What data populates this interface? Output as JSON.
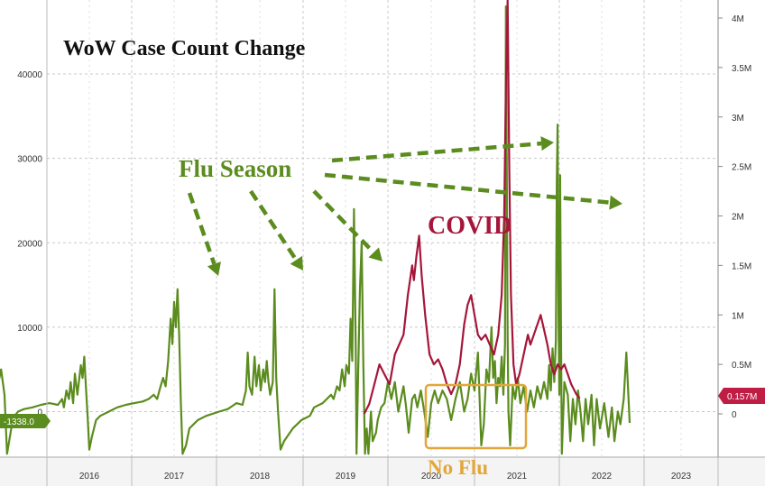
{
  "chart_data": {
    "type": "line",
    "title": "WoW Case Count Change",
    "x": [
      "2016",
      "2017",
      "2018",
      "2019",
      "2020",
      "2021",
      "2022",
      "2023"
    ],
    "y_left": {
      "ylim": [
        -5000,
        48000
      ],
      "ticks": [
        "0",
        "10000",
        "20000",
        "30000",
        "40000"
      ],
      "values": [
        0,
        10000,
        20000,
        30000,
        40000
      ]
    },
    "y_right": {
      "ylim": [
        -400000,
        4400000
      ],
      "ticks": [
        "0",
        "0.5M",
        "1M",
        "1.5M",
        "2M",
        "2.5M",
        "3M",
        "3.5M",
        "4M"
      ],
      "values": [
        0,
        500000,
        1000000,
        1500000,
        2000000,
        2500000,
        3000000,
        3500000,
        4000000
      ]
    },
    "series": [
      {
        "axis": "left",
        "color": "#5b8c1e",
        "values": [
          [
            2015.6,
            -5000
          ],
          [
            2015.63,
            2000
          ],
          [
            2015.66,
            3000
          ],
          [
            2015.7,
            2500
          ],
          [
            2015.74,
            0
          ],
          [
            2015.77,
            800
          ],
          [
            2015.8,
            -1000
          ],
          [
            2015.85,
            3500
          ],
          [
            2015.88,
            5000
          ],
          [
            2015.92,
            2000
          ],
          [
            2015.95,
            -5000
          ],
          [
            2016.0,
            -2000
          ],
          [
            2016.04,
            -500
          ],
          [
            2016.08,
            0
          ],
          [
            2016.15,
            300
          ],
          [
            2016.25,
            500
          ],
          [
            2016.35,
            800
          ],
          [
            2016.45,
            1000
          ],
          [
            2016.55,
            800
          ],
          [
            2016.6,
            1500
          ],
          [
            2016.62,
            500
          ],
          [
            2016.65,
            2500
          ],
          [
            2016.68,
            1500
          ],
          [
            2016.7,
            3500
          ],
          [
            2016.73,
            1000
          ],
          [
            2016.75,
            4500
          ],
          [
            2016.78,
            2000
          ],
          [
            2016.82,
            5500
          ],
          [
            2016.84,
            4000
          ],
          [
            2016.86,
            6500
          ],
          [
            2016.88,
            3000
          ],
          [
            2016.9,
            -500
          ],
          [
            2016.92,
            -4500
          ],
          [
            2016.95,
            -3000
          ],
          [
            2017.0,
            -1000
          ],
          [
            2017.05,
            -500
          ],
          [
            2017.15,
            0
          ],
          [
            2017.25,
            500
          ],
          [
            2017.35,
            800
          ],
          [
            2017.45,
            1000
          ],
          [
            2017.55,
            1200
          ],
          [
            2017.62,
            1500
          ],
          [
            2017.68,
            2000
          ],
          [
            2017.72,
            1500
          ],
          [
            2017.76,
            3000
          ],
          [
            2017.79,
            4000
          ],
          [
            2017.82,
            3000
          ],
          [
            2017.85,
            6000
          ],
          [
            2017.88,
            11000
          ],
          [
            2017.9,
            8000
          ],
          [
            2017.92,
            13000
          ],
          [
            2017.94,
            10000
          ],
          [
            2017.96,
            14500
          ],
          [
            2017.98,
            9000
          ],
          [
            2018.0,
            1000
          ],
          [
            2018.02,
            -5000
          ],
          [
            2018.06,
            -4000
          ],
          [
            2018.1,
            -2000
          ],
          [
            2018.2,
            -1000
          ],
          [
            2018.3,
            -500
          ],
          [
            2018.45,
            0
          ],
          [
            2018.55,
            300
          ],
          [
            2018.65,
            1000
          ],
          [
            2018.72,
            800
          ],
          [
            2018.76,
            2500
          ],
          [
            2018.78,
            7000
          ],
          [
            2018.8,
            3000
          ],
          [
            2018.83,
            2000
          ],
          [
            2018.86,
            6500
          ],
          [
            2018.88,
            3000
          ],
          [
            2018.91,
            5500
          ],
          [
            2018.93,
            2500
          ],
          [
            2018.96,
            5000
          ],
          [
            2018.98,
            3500
          ],
          [
            2019.0,
            6000
          ],
          [
            2019.02,
            3500
          ],
          [
            2019.04,
            2000
          ],
          [
            2019.07,
            3500
          ],
          [
            2019.09,
            14500
          ],
          [
            2019.11,
            4000
          ],
          [
            2019.13,
            0
          ],
          [
            2019.16,
            -4500
          ],
          [
            2019.2,
            -3500
          ],
          [
            2019.3,
            -2000
          ],
          [
            2019.4,
            -1000
          ],
          [
            2019.5,
            -500
          ],
          [
            2019.55,
            500
          ],
          [
            2019.65,
            1000
          ],
          [
            2019.75,
            2000
          ],
          [
            2019.78,
            1500
          ],
          [
            2019.82,
            3000
          ],
          [
            2019.85,
            2500
          ],
          [
            2019.88,
            5000
          ],
          [
            2019.91,
            3000
          ],
          [
            2019.93,
            5500
          ],
          [
            2019.96,
            4500
          ],
          [
            2019.98,
            11000
          ],
          [
            2020.0,
            6000
          ],
          [
            2020.02,
            24000
          ],
          [
            2020.04,
            8000
          ],
          [
            2020.05,
            -5000
          ],
          [
            2020.07,
            5000
          ],
          [
            2020.09,
            14500
          ],
          [
            2020.11,
            20000
          ],
          [
            2020.13,
            6000
          ],
          [
            2020.15,
            -5000
          ],
          [
            2020.17,
            -2000
          ],
          [
            2020.19,
            -5000
          ],
          [
            2020.22,
            0
          ],
          [
            2020.24,
            -3500
          ],
          [
            2020.28,
            -2500
          ],
          [
            2020.3,
            -1000
          ],
          [
            2020.34,
            500
          ],
          [
            2020.38,
            1000
          ],
          [
            2020.42,
            3500
          ],
          [
            2020.46,
            1500
          ],
          [
            2020.5,
            3500
          ],
          [
            2020.54,
            0
          ],
          [
            2020.57,
            1500
          ],
          [
            2020.6,
            3000
          ],
          [
            2020.63,
            500
          ],
          [
            2020.66,
            -2500
          ],
          [
            2020.7,
            1500
          ],
          [
            2020.73,
            2000
          ],
          [
            2020.76,
            500
          ],
          [
            2020.8,
            2500
          ],
          [
            2020.84,
            0
          ],
          [
            2020.88,
            -3000
          ],
          [
            2020.92,
            1000
          ],
          [
            2020.96,
            2500
          ],
          [
            2021.0,
            1000
          ],
          [
            2021.05,
            2500
          ],
          [
            2021.1,
            1500
          ],
          [
            2021.15,
            -1000
          ],
          [
            2021.2,
            1500
          ],
          [
            2021.25,
            3500
          ],
          [
            2021.3,
            0
          ],
          [
            2021.34,
            1500
          ],
          [
            2021.38,
            4500
          ],
          [
            2021.42,
            2500
          ],
          [
            2021.46,
            7000
          ],
          [
            2021.5,
            -4000
          ],
          [
            2021.53,
            -1500
          ],
          [
            2021.56,
            5000
          ],
          [
            2021.59,
            3500
          ],
          [
            2021.62,
            10000
          ],
          [
            2021.64,
            4000
          ],
          [
            2021.66,
            6000
          ],
          [
            2021.68,
            1000
          ],
          [
            2021.7,
            4000
          ],
          [
            2021.72,
            3000
          ],
          [
            2021.74,
            6500
          ],
          [
            2021.76,
            2000
          ],
          [
            2021.78,
            8000
          ],
          [
            2021.79,
            48000
          ],
          [
            2021.8,
            30000
          ],
          [
            2021.81,
            9000
          ],
          [
            2021.82,
            0
          ],
          [
            2021.84,
            -4000
          ],
          [
            2021.87,
            3000
          ],
          [
            2021.9,
            1500
          ],
          [
            2021.93,
            4000
          ],
          [
            2021.96,
            1000
          ],
          [
            2022.0,
            3000
          ],
          [
            2022.04,
            0
          ],
          [
            2022.08,
            2500
          ],
          [
            2022.12,
            500
          ],
          [
            2022.16,
            3000
          ],
          [
            2022.2,
            1500
          ],
          [
            2022.24,
            3500
          ],
          [
            2022.28,
            1500
          ],
          [
            2022.3,
            5500
          ],
          [
            2022.32,
            2500
          ],
          [
            2022.34,
            7500
          ],
          [
            2022.36,
            3500
          ],
          [
            2022.38,
            8500
          ],
          [
            2022.39,
            27000
          ],
          [
            2022.4,
            34000
          ],
          [
            2022.41,
            12000
          ],
          [
            2022.42,
            2000
          ],
          [
            2022.43,
            28000
          ],
          [
            2022.44,
            9000
          ],
          [
            2022.45,
            -5000
          ],
          [
            2022.48,
            3500
          ],
          [
            2022.52,
            2000
          ],
          [
            2022.55,
            -3500
          ],
          [
            2022.58,
            1500
          ],
          [
            2022.61,
            -1500
          ],
          [
            2022.64,
            2500
          ],
          [
            2022.67,
            0
          ],
          [
            2022.7,
            -3500
          ],
          [
            2022.73,
            1500
          ],
          [
            2022.76,
            -1500
          ],
          [
            2022.8,
            2000
          ],
          [
            2022.83,
            -4000
          ],
          [
            2022.86,
            1500
          ],
          [
            2022.9,
            -2000
          ],
          [
            2022.95,
            1000
          ],
          [
            2023.0,
            -3000
          ],
          [
            2023.04,
            500
          ],
          [
            2023.07,
            -3500
          ],
          [
            2023.11,
            0
          ],
          [
            2023.14,
            -1500
          ],
          [
            2023.18,
            1500
          ],
          [
            2023.21,
            7000
          ],
          [
            2023.25,
            -1338
          ]
        ]
      },
      {
        "axis": "right",
        "color": "#a5163a",
        "values": [
          [
            2020.14,
            0
          ],
          [
            2020.2,
            100000
          ],
          [
            2020.26,
            300000
          ],
          [
            2020.32,
            500000
          ],
          [
            2020.38,
            400000
          ],
          [
            2020.44,
            300000
          ],
          [
            2020.5,
            600000
          ],
          [
            2020.55,
            700000
          ],
          [
            2020.6,
            800000
          ],
          [
            2020.65,
            1200000
          ],
          [
            2020.7,
            1500000
          ],
          [
            2020.72,
            1350000
          ],
          [
            2020.75,
            1600000
          ],
          [
            2020.78,
            1800000
          ],
          [
            2020.81,
            1400000
          ],
          [
            2020.85,
            1000000
          ],
          [
            2020.9,
            600000
          ],
          [
            2020.95,
            500000
          ],
          [
            2021.0,
            550000
          ],
          [
            2021.05,
            450000
          ],
          [
            2021.1,
            300000
          ],
          [
            2021.15,
            200000
          ],
          [
            2021.2,
            300000
          ],
          [
            2021.25,
            500000
          ],
          [
            2021.3,
            900000
          ],
          [
            2021.34,
            1100000
          ],
          [
            2021.38,
            1200000
          ],
          [
            2021.42,
            1000000
          ],
          [
            2021.46,
            800000
          ],
          [
            2021.5,
            750000
          ],
          [
            2021.55,
            800000
          ],
          [
            2021.6,
            700000
          ],
          [
            2021.65,
            600000
          ],
          [
            2021.7,
            800000
          ],
          [
            2021.74,
            1200000
          ],
          [
            2021.77,
            2000000
          ],
          [
            2021.79,
            3300000
          ],
          [
            2021.81,
            4400000
          ],
          [
            2021.83,
            2500000
          ],
          [
            2021.85,
            1200000
          ],
          [
            2021.88,
            500000
          ],
          [
            2021.91,
            300000
          ],
          [
            2021.95,
            400000
          ],
          [
            2022.0,
            600000
          ],
          [
            2022.05,
            800000
          ],
          [
            2022.08,
            700000
          ],
          [
            2022.12,
            800000
          ],
          [
            2022.16,
            900000
          ],
          [
            2022.2,
            1000000
          ],
          [
            2022.24,
            850000
          ],
          [
            2022.28,
            700000
          ],
          [
            2022.32,
            500000
          ],
          [
            2022.36,
            400000
          ],
          [
            2022.4,
            500000
          ],
          [
            2022.44,
            450000
          ],
          [
            2022.48,
            500000
          ],
          [
            2022.52,
            400000
          ],
          [
            2022.56,
            300000
          ],
          [
            2022.62,
            200000
          ],
          [
            2022.66,
            157000
          ]
        ]
      }
    ],
    "annotations": [
      "Flu Season",
      "COVID",
      "No Flu"
    ],
    "last_value_left": "-1338.0",
    "last_value_right": "0.157M",
    "grid": true
  }
}
